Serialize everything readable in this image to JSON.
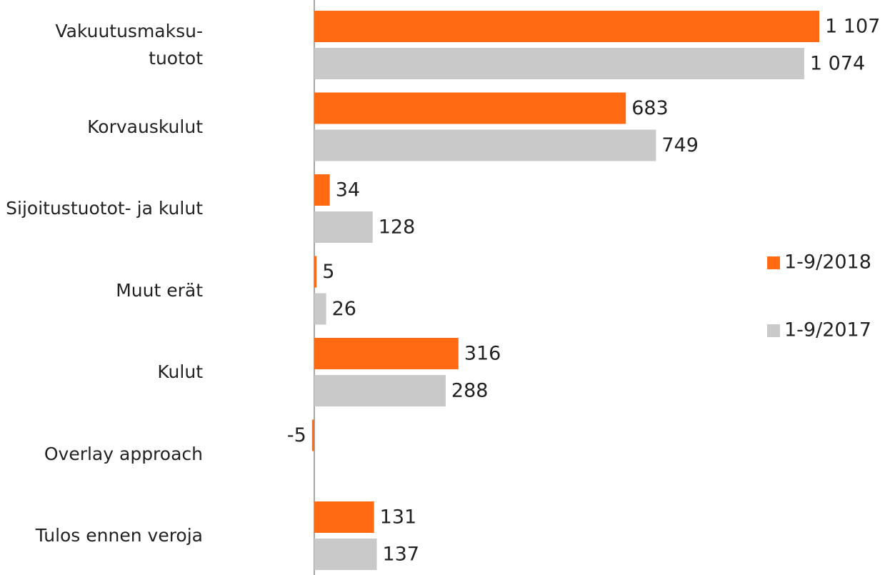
{
  "chart_data": {
    "type": "bar",
    "orientation": "horizontal",
    "categories": [
      "Vakuutusmaksu-\ntuotot",
      "Korvauskulut",
      "Sijoitustuotot- ja kulut",
      "Muut erät",
      "Kulut",
      "Overlay approach",
      "Tulos ennen veroja"
    ],
    "series": [
      {
        "name": "1-9/2018",
        "color": "#ff6a13",
        "values": [
          1107,
          683,
          34,
          5,
          316,
          -5,
          131
        ],
        "value_labels": [
          "1 107",
          "683",
          "34",
          "5",
          "316",
          "-5",
          "131"
        ]
      },
      {
        "name": "1-9/2017",
        "color": "#c9c9c9",
        "values": [
          1074,
          749,
          128,
          26,
          288,
          null,
          137
        ],
        "value_labels": [
          "1 074",
          "749",
          "128",
          "26",
          "288",
          null,
          "137"
        ]
      }
    ],
    "legend": "right"
  }
}
